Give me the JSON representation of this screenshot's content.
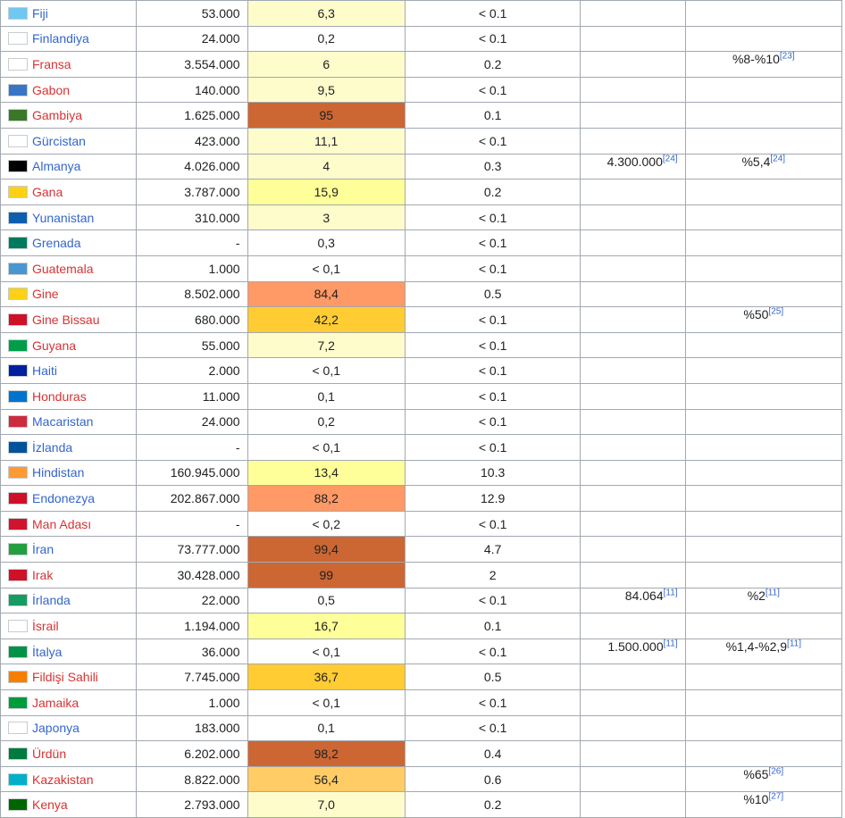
{
  "rows": [
    {
      "country": "Fiji",
      "link": "blue",
      "flag": "#6ec8f0",
      "pop": "53.000",
      "pct": "6,3",
      "pct_color": "#fffccc",
      "world": "< 0.1",
      "est": "",
      "est_ref": "",
      "estp": "",
      "estp_ref": ""
    },
    {
      "country": "Finlandiya",
      "link": "blue",
      "flag": "#ffffff",
      "pop": "24.000",
      "pct": "0,2",
      "pct_color": "#ffffff",
      "world": "< 0.1",
      "est": "",
      "est_ref": "",
      "estp": "",
      "estp_ref": ""
    },
    {
      "country": "Fransa",
      "link": "new",
      "flag": "#ffffff",
      "pop": "3.554.000",
      "pct": "6",
      "pct_color": "#fffccc",
      "world": "0.2",
      "est": "",
      "est_ref": "",
      "estp": "%8-%10",
      "estp_ref": "[23]"
    },
    {
      "country": "Gabon",
      "link": "new",
      "flag": "#3a75c4",
      "pop": "140.000",
      "pct": "9,5",
      "pct_color": "#fffccc",
      "world": "< 0.1",
      "est": "",
      "est_ref": "",
      "estp": "",
      "estp_ref": ""
    },
    {
      "country": "Gambiya",
      "link": "new",
      "flag": "#3a7728",
      "pop": "1.625.000",
      "pct": "95",
      "pct_color": "#cc6633",
      "world": "0.1",
      "est": "",
      "est_ref": "",
      "estp": "",
      "estp_ref": ""
    },
    {
      "country": "Gürcistan",
      "link": "blue",
      "flag": "#ffffff",
      "pop": "423.000",
      "pct": "11,1",
      "pct_color": "#fffccc",
      "world": "< 0.1",
      "est": "",
      "est_ref": "",
      "estp": "",
      "estp_ref": ""
    },
    {
      "country": "Almanya",
      "link": "blue",
      "flag": "#000000",
      "pop": "4.026.000",
      "pct": "4",
      "pct_color": "#fffccc",
      "world": "0.3",
      "est": "4.300.000",
      "est_ref": "[24]",
      "estp": "%5,4",
      "estp_ref": "[24]"
    },
    {
      "country": "Gana",
      "link": "new",
      "flag": "#fcd116",
      "pop": "3.787.000",
      "pct": "15,9",
      "pct_color": "#ffff99",
      "world": "0.2",
      "est": "",
      "est_ref": "",
      "estp": "",
      "estp_ref": ""
    },
    {
      "country": "Yunanistan",
      "link": "blue",
      "flag": "#0d5eaf",
      "pop": "310.000",
      "pct": "3",
      "pct_color": "#fffccc",
      "world": "< 0.1",
      "est": "",
      "est_ref": "",
      "estp": "",
      "estp_ref": ""
    },
    {
      "country": "Grenada",
      "link": "blue",
      "flag": "#007a5e",
      "pop": "-",
      "pct": "0,3",
      "pct_color": "#ffffff",
      "world": "< 0.1",
      "est": "",
      "est_ref": "",
      "estp": "",
      "estp_ref": ""
    },
    {
      "country": "Guatemala",
      "link": "new",
      "flag": "#4997d0",
      "pop": "1.000",
      "pct": "< 0,1",
      "pct_color": "#ffffff",
      "world": "< 0.1",
      "est": "",
      "est_ref": "",
      "estp": "",
      "estp_ref": ""
    },
    {
      "country": "Gine",
      "link": "new",
      "flag": "#fcd116",
      "pop": "8.502.000",
      "pct": "84,4",
      "pct_color": "#ff9966",
      "world": "0.5",
      "est": "",
      "est_ref": "",
      "estp": "",
      "estp_ref": ""
    },
    {
      "country": "Gine Bissau",
      "link": "new",
      "flag": "#ce1126",
      "pop": "680.000",
      "pct": "42,2",
      "pct_color": "#ffcc33",
      "world": "< 0.1",
      "est": "",
      "est_ref": "",
      "estp": "%50",
      "estp_ref": "[25]"
    },
    {
      "country": "Guyana",
      "link": "new",
      "flag": "#009e49",
      "pop": "55.000",
      "pct": "7,2",
      "pct_color": "#fffccc",
      "world": "< 0.1",
      "est": "",
      "est_ref": "",
      "estp": "",
      "estp_ref": ""
    },
    {
      "country": "Haiti",
      "link": "blue",
      "flag": "#00209f",
      "pop": "2.000",
      "pct": "< 0,1",
      "pct_color": "#ffffff",
      "world": "< 0.1",
      "est": "",
      "est_ref": "",
      "estp": "",
      "estp_ref": ""
    },
    {
      "country": "Honduras",
      "link": "new",
      "flag": "#0073cf",
      "pop": "11.000",
      "pct": "0,1",
      "pct_color": "#ffffff",
      "world": "< 0.1",
      "est": "",
      "est_ref": "",
      "estp": "",
      "estp_ref": ""
    },
    {
      "country": "Macaristan",
      "link": "blue",
      "flag": "#cd2a3e",
      "pop": "24.000",
      "pct": "0,2",
      "pct_color": "#ffffff",
      "world": "< 0.1",
      "est": "",
      "est_ref": "",
      "estp": "",
      "estp_ref": ""
    },
    {
      "country": "İzlanda",
      "link": "blue",
      "flag": "#02529c",
      "pop": "-",
      "pct": "< 0,1",
      "pct_color": "#ffffff",
      "world": "< 0.1",
      "est": "",
      "est_ref": "",
      "estp": "",
      "estp_ref": ""
    },
    {
      "country": "Hindistan",
      "link": "blue",
      "flag": "#ff9933",
      "pop": "160.945.000",
      "pct": "13,4",
      "pct_color": "#ffff99",
      "world": "10.3",
      "est": "",
      "est_ref": "",
      "estp": "",
      "estp_ref": ""
    },
    {
      "country": "Endonezya",
      "link": "blue",
      "flag": "#ce1126",
      "pop": "202.867.000",
      "pct": "88,2",
      "pct_color": "#ff9966",
      "world": "12.9",
      "est": "",
      "est_ref": "",
      "estp": "",
      "estp_ref": ""
    },
    {
      "country": "Man Adası",
      "link": "new",
      "flag": "#cf142b",
      "pop": "-",
      "pct": "< 0,2",
      "pct_color": "#ffffff",
      "world": "< 0.1",
      "est": "",
      "est_ref": "",
      "estp": "",
      "estp_ref": ""
    },
    {
      "country": "İran",
      "link": "blue",
      "flag": "#239f40",
      "pop": "73.777.000",
      "pct": "99,4",
      "pct_color": "#cc6633",
      "world": "4.7",
      "est": "",
      "est_ref": "",
      "estp": "",
      "estp_ref": ""
    },
    {
      "country": "Irak",
      "link": "new",
      "flag": "#ce1126",
      "pop": "30.428.000",
      "pct": "99",
      "pct_color": "#cc6633",
      "world": "2",
      "est": "",
      "est_ref": "",
      "estp": "",
      "estp_ref": ""
    },
    {
      "country": "İrlanda",
      "link": "blue",
      "flag": "#169b62",
      "pop": "22.000",
      "pct": "0,5",
      "pct_color": "#ffffff",
      "world": "< 0.1",
      "est": "84.064",
      "est_ref": "[11]",
      "estp": "%2",
      "estp_ref": "[11]"
    },
    {
      "country": "İsrail",
      "link": "new",
      "flag": "#ffffff",
      "pop": "1.194.000",
      "pct": "16,7",
      "pct_color": "#ffff99",
      "world": "0.1",
      "est": "",
      "est_ref": "",
      "estp": "",
      "estp_ref": ""
    },
    {
      "country": "İtalya",
      "link": "blue",
      "flag": "#009246",
      "pop": "36.000",
      "pct": "< 0,1",
      "pct_color": "#ffffff",
      "world": "< 0.1",
      "est": "1.500.000",
      "est_ref": "[11]",
      "estp": "%1,4-%2,9",
      "estp_ref": "[11]"
    },
    {
      "country": "Fildişi Sahili",
      "link": "new",
      "flag": "#f77f00",
      "pop": "7.745.000",
      "pct": "36,7",
      "pct_color": "#ffcc33",
      "world": "0.5",
      "est": "",
      "est_ref": "",
      "estp": "",
      "estp_ref": ""
    },
    {
      "country": "Jamaika",
      "link": "new",
      "flag": "#009b3a",
      "pop": "1.000",
      "pct": "< 0,1",
      "pct_color": "#ffffff",
      "world": "< 0.1",
      "est": "",
      "est_ref": "",
      "estp": "",
      "estp_ref": ""
    },
    {
      "country": "Japonya",
      "link": "blue",
      "flag": "#ffffff",
      "pop": "183.000",
      "pct": "0,1",
      "pct_color": "#ffffff",
      "world": "< 0.1",
      "est": "",
      "est_ref": "",
      "estp": "",
      "estp_ref": ""
    },
    {
      "country": "Ürdün",
      "link": "new",
      "flag": "#007a3d",
      "pop": "6.202.000",
      "pct": "98,2",
      "pct_color": "#cc6633",
      "world": "0.4",
      "est": "",
      "est_ref": "",
      "estp": "",
      "estp_ref": ""
    },
    {
      "country": "Kazakistan",
      "link": "new",
      "flag": "#00afca",
      "pop": "8.822.000",
      "pct": "56,4",
      "pct_color": "#ffcc66",
      "world": "0.6",
      "est": "",
      "est_ref": "",
      "estp": "%65",
      "estp_ref": "[26]"
    },
    {
      "country": "Kenya",
      "link": "new",
      "flag": "#006600",
      "pop": "2.793.000",
      "pct": "7,0",
      "pct_color": "#fffccc",
      "world": "0.2",
      "est": "",
      "est_ref": "",
      "estp": "%10",
      "estp_ref": "[27]"
    }
  ]
}
